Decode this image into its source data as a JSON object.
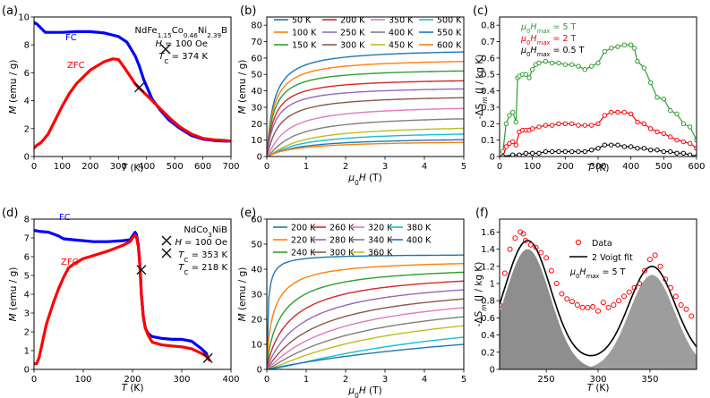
{
  "chart_data": [
    {
      "id": "a",
      "type": "line",
      "panel_label": "(a)",
      "xlabel": "T (K)",
      "ylabel": "M (emu / g)",
      "xlim": [
        0,
        700
      ],
      "ylim": [
        0,
        10
      ],
      "xticks": [
        0,
        100,
        200,
        300,
        400,
        500,
        600,
        700
      ],
      "yticks": [
        0,
        2,
        4,
        6,
        8,
        10
      ],
      "annotations": {
        "compound": "NdFe1.15Co0.46Ni2.39B",
        "field": "H = 100 Oe",
        "tc": "TC = 374 K"
      },
      "series": [
        {
          "name": "FC",
          "color": "#0000ff",
          "x": [
            0,
            10,
            25,
            40,
            60,
            80,
            100,
            150,
            200,
            250,
            300,
            330,
            360,
            374,
            390,
            420,
            450,
            480,
            520,
            560,
            600,
            640,
            680,
            700
          ],
          "y": [
            9.6,
            9.5,
            9.2,
            8.9,
            8.9,
            8.9,
            8.9,
            8.95,
            8.95,
            8.85,
            8.6,
            8.2,
            7.2,
            6.5,
            5.5,
            4.1,
            3.3,
            2.6,
            2.0,
            1.5,
            1.25,
            1.15,
            1.1,
            1.1
          ]
        },
        {
          "name": "ZFC",
          "color": "#ff0000",
          "x": [
            0,
            10,
            25,
            50,
            75,
            100,
            125,
            150,
            200,
            250,
            280,
            300,
            320,
            340,
            360,
            374,
            400,
            430,
            460,
            490,
            520,
            560,
            600,
            640,
            680,
            700
          ],
          "y": [
            0.6,
            0.8,
            1.0,
            1.6,
            2.6,
            3.6,
            4.5,
            5.2,
            6.2,
            6.8,
            7.0,
            6.95,
            6.4,
            5.8,
            5.2,
            4.9,
            4.4,
            3.8,
            3.2,
            2.6,
            2.1,
            1.6,
            1.3,
            1.2,
            1.15,
            1.1
          ]
        }
      ],
      "markers": [
        {
          "x": 374,
          "y": 4.95
        }
      ]
    },
    {
      "id": "b",
      "type": "line",
      "panel_label": "(b)",
      "xlabel": "μ0H (T)",
      "ylabel": "M (emu / g)",
      "xlim": [
        0,
        5
      ],
      "ylim": [
        0,
        85
      ],
      "xticks": [
        0,
        1,
        2,
        3,
        4,
        5
      ],
      "yticks": [
        0,
        10,
        20,
        30,
        40,
        50,
        60,
        70,
        80
      ],
      "series": [
        {
          "name": "50 K",
          "color": "#1f77b4",
          "msat": 66,
          "h0": 0.18,
          "s": 1.0
        },
        {
          "name": "100 K",
          "color": "#ff7f0e",
          "msat": 60,
          "h0": 0.18,
          "s": 1.0
        },
        {
          "name": "150 K",
          "color": "#2ca02c",
          "msat": 54,
          "h0": 0.18,
          "s": 1.0
        },
        {
          "name": "200 K",
          "color": "#d62728",
          "msat": 48,
          "h0": 0.2,
          "s": 1.0
        },
        {
          "name": "250 K",
          "color": "#9467bd",
          "msat": 43,
          "h0": 0.22,
          "s": 1.0
        },
        {
          "name": "300 K",
          "color": "#8c564b",
          "msat": 38,
          "h0": 0.25,
          "s": 1.2
        },
        {
          "name": "350 K",
          "color": "#e377c2",
          "msat": 32,
          "h0": 0.3,
          "s": 1.5
        },
        {
          "name": "400 K",
          "color": "#7f7f7f",
          "msat": 26,
          "h0": 0.4,
          "s": 1.6
        },
        {
          "name": "450 K",
          "color": "#bcbd22",
          "msat": 20,
          "h0": 0.5,
          "s": 1.6
        },
        {
          "name": "500 K",
          "color": "#17becf",
          "msat": 16,
          "h0": 0.6,
          "s": 1.4
        },
        {
          "name": "550 K",
          "color": "#1f77b4",
          "msat": 12,
          "h0": 0.7,
          "s": 1.2
        },
        {
          "name": "600 K",
          "color": "#ff7f0e",
          "msat": 10,
          "h0": 0.8,
          "s": 1.0
        }
      ]
    },
    {
      "id": "c",
      "type": "line",
      "panel_label": "(c)",
      "xlabel": "T (K)",
      "ylabel": "-ΔSm (J / kg K)",
      "xlim": [
        0,
        600
      ],
      "ylim": [
        0,
        0.85
      ],
      "xticks": [
        0,
        100,
        200,
        300,
        400,
        500,
        600
      ],
      "yticks": [
        0,
        0.1,
        0.2,
        0.3,
        0.4,
        0.5,
        0.6,
        0.7,
        0.8
      ],
      "series": [
        {
          "name": "μ0Hmax = 5 T",
          "color": "#2ca02c",
          "x": [
            10,
            20,
            30,
            40,
            50,
            55,
            60,
            70,
            80,
            90,
            100,
            110,
            120,
            140,
            160,
            180,
            200,
            220,
            240,
            260,
            280,
            300,
            320,
            340,
            360,
            380,
            400,
            410,
            420,
            440,
            460,
            480,
            500,
            520,
            540,
            560,
            580,
            600
          ],
          "y": [
            0.03,
            0.2,
            0.25,
            0.27,
            0.21,
            0.48,
            0.49,
            0.5,
            0.5,
            0.48,
            0.53,
            0.56,
            0.57,
            0.58,
            0.57,
            0.57,
            0.56,
            0.56,
            0.55,
            0.53,
            0.55,
            0.57,
            0.64,
            0.66,
            0.67,
            0.68,
            0.68,
            0.66,
            0.58,
            0.54,
            0.45,
            0.36,
            0.35,
            0.28,
            0.26,
            0.2,
            0.18,
            0.1
          ]
        },
        {
          "name": "μ0Hmax = 2 T",
          "color": "#ff0000",
          "x": [
            10,
            20,
            30,
            40,
            50,
            60,
            70,
            80,
            90,
            100,
            120,
            140,
            160,
            180,
            200,
            220,
            240,
            260,
            280,
            300,
            320,
            340,
            360,
            380,
            400,
            420,
            440,
            460,
            480,
            500,
            520,
            540,
            560,
            580,
            600
          ],
          "y": [
            0.0,
            0.06,
            0.08,
            0.09,
            0.07,
            0.15,
            0.16,
            0.16,
            0.16,
            0.17,
            0.18,
            0.19,
            0.19,
            0.2,
            0.2,
            0.2,
            0.19,
            0.19,
            0.19,
            0.2,
            0.25,
            0.27,
            0.27,
            0.27,
            0.26,
            0.21,
            0.2,
            0.17,
            0.15,
            0.14,
            0.12,
            0.1,
            0.09,
            0.08,
            0.05
          ]
        },
        {
          "name": "μ0Hmax = 0.5 T",
          "color": "#000000",
          "x": [
            10,
            40,
            60,
            80,
            100,
            120,
            140,
            160,
            180,
            200,
            220,
            240,
            260,
            280,
            300,
            320,
            340,
            360,
            380,
            400,
            420,
            440,
            460,
            480,
            500,
            520,
            540,
            560,
            580,
            600
          ],
          "y": [
            0.0,
            0.01,
            0.01,
            0.02,
            0.02,
            0.02,
            0.03,
            0.03,
            0.03,
            0.03,
            0.03,
            0.03,
            0.03,
            0.04,
            0.05,
            0.07,
            0.07,
            0.07,
            0.06,
            0.06,
            0.05,
            0.05,
            0.04,
            0.04,
            0.03,
            0.03,
            0.02,
            0.02,
            0.01,
            0.0
          ]
        }
      ]
    },
    {
      "id": "d",
      "type": "line",
      "panel_label": "(d)",
      "xlabel": "T (K)",
      "ylabel": "M (emu / g)",
      "xlim": [
        0,
        400
      ],
      "ylim": [
        0,
        8
      ],
      "xticks": [
        0,
        100,
        200,
        300,
        400
      ],
      "yticks": [
        0,
        1,
        2,
        3,
        4,
        5,
        6,
        7,
        8
      ],
      "annotations": {
        "compound": "NdCo3NiB",
        "field": "H = 100 Oe",
        "tc1": "TC = 353 K",
        "tc2": "TC = 218 K"
      },
      "series": [
        {
          "name": "FC",
          "color": "#0000ff",
          "x": [
            0,
            10,
            30,
            50,
            60,
            80,
            100,
            120,
            150,
            180,
            195,
            200,
            205,
            208,
            212,
            215,
            218,
            222,
            226,
            232,
            240,
            260,
            280,
            300,
            320,
            340,
            350,
            353,
            356
          ],
          "y": [
            7.4,
            7.35,
            7.3,
            7.1,
            6.95,
            6.9,
            6.85,
            6.8,
            6.8,
            6.85,
            6.9,
            7.1,
            7.3,
            7.2,
            6.6,
            5.5,
            4.0,
            2.8,
            2.2,
            1.9,
            1.75,
            1.65,
            1.6,
            1.6,
            1.5,
            1.1,
            0.85,
            0.6,
            0.5
          ]
        },
        {
          "name": "ZFC",
          "color": "#ff0000",
          "x": [
            0,
            5,
            10,
            15,
            20,
            25,
            30,
            40,
            50,
            60,
            70,
            80,
            100,
            120,
            150,
            180,
            195,
            200,
            205,
            208,
            212,
            215,
            218,
            222,
            226,
            232,
            240,
            260,
            280,
            300,
            320,
            340,
            350,
            353,
            356
          ],
          "y": [
            0.3,
            0.3,
            0.6,
            1.2,
            1.8,
            2.4,
            2.8,
            3.6,
            4.3,
            4.9,
            5.4,
            5.6,
            5.9,
            6.05,
            6.3,
            6.6,
            6.8,
            7.0,
            7.15,
            7.05,
            6.5,
            5.5,
            4.0,
            2.8,
            2.2,
            1.8,
            1.45,
            1.3,
            1.25,
            1.2,
            1.1,
            0.85,
            0.7,
            0.6,
            0.5
          ]
        }
      ],
      "markers": [
        {
          "x": 218,
          "y": 5.3
        },
        {
          "x": 353,
          "y": 0.6
        }
      ]
    },
    {
      "id": "e",
      "type": "line",
      "panel_label": "(e)",
      "xlabel": "μ0H (T)",
      "ylabel": "M (emu / g)",
      "xlim": [
        0,
        5
      ],
      "ylim": [
        0,
        60
      ],
      "xticks": [
        0,
        1,
        2,
        3,
        4,
        5
      ],
      "yticks": [
        0,
        10,
        20,
        30,
        40,
        50,
        60
      ],
      "series": [
        {
          "name": "200 K",
          "color": "#1f77b4",
          "msat": 46,
          "h0": 0.08,
          "s": 0.5
        },
        {
          "name": "220 K",
          "color": "#ff7f0e",
          "msat": 44,
          "h0": 0.35,
          "s": 0.6
        },
        {
          "name": "240 K",
          "color": "#2ca02c",
          "msat": 42,
          "h0": 0.6,
          "s": 0.7
        },
        {
          "name": "260 K",
          "color": "#d62728",
          "msat": 40,
          "h0": 0.85,
          "s": 0.8
        },
        {
          "name": "280 K",
          "color": "#9467bd",
          "msat": 38,
          "h0": 1.1,
          "s": 0.9
        },
        {
          "name": "300 K",
          "color": "#8c564b",
          "msat": 36,
          "h0": 1.4,
          "s": 1.0
        },
        {
          "name": "320 K",
          "color": "#e377c2",
          "msat": 34,
          "h0": 1.7,
          "s": 1.1
        },
        {
          "name": "340 K",
          "color": "#7f7f7f",
          "msat": 32,
          "h0": 2.1,
          "s": 1.2
        },
        {
          "name": "360 K",
          "color": "#bcbd22",
          "msat": 30,
          "h0": 2.6,
          "s": 1.3
        },
        {
          "name": "380 K",
          "color": "#17becf",
          "msat": 28,
          "h0": 3.4,
          "s": 1.5
        },
        {
          "name": "400 K",
          "color": "#1f77b4",
          "msat": 26,
          "h0": 8.0,
          "s": 1.0
        }
      ]
    },
    {
      "id": "f",
      "type": "scatter",
      "panel_label": "(f)",
      "xlabel": "T (K)",
      "ylabel": "-ΔSm (J / kg K)",
      "xlim": [
        205,
        395
      ],
      "ylim": [
        0,
        1.75
      ],
      "xticks": [
        250,
        300,
        350
      ],
      "yticks": [
        0,
        0.2,
        0.4,
        0.6,
        0.8,
        1.0,
        1.2,
        1.4,
        1.6
      ],
      "legend": {
        "data": "Data",
        "fit": "2 Voigt fit",
        "field": "μ0Hmax = 5 T"
      },
      "peaks": [
        {
          "center": 232,
          "amp": 1.4,
          "sigma": 22,
          "color": "#808080"
        },
        {
          "center": 352,
          "amp": 1.1,
          "sigma": 22,
          "color": "#808080"
        }
      ],
      "fit_offset": 0.1,
      "data": {
        "x": [
          205,
          210,
          215,
          220,
          225,
          228,
          230,
          235,
          240,
          245,
          250,
          255,
          260,
          265,
          270,
          275,
          280,
          285,
          290,
          295,
          300,
          305,
          310,
          315,
          320,
          325,
          330,
          335,
          340,
          345,
          350,
          355,
          360,
          365,
          370,
          375,
          380,
          385,
          390
        ],
        "y": [
          0.75,
          1.12,
          1.4,
          1.53,
          1.6,
          1.58,
          1.5,
          1.45,
          1.42,
          1.36,
          1.3,
          1.15,
          1.0,
          0.88,
          0.82,
          0.79,
          0.75,
          0.72,
          0.72,
          0.73,
          0.68,
          0.78,
          0.72,
          0.75,
          0.8,
          0.85,
          0.9,
          0.95,
          1.0,
          1.15,
          1.28,
          1.33,
          1.2,
          1.05,
          0.95,
          0.85,
          0.75,
          0.7,
          0.62
        ]
      }
    }
  ]
}
